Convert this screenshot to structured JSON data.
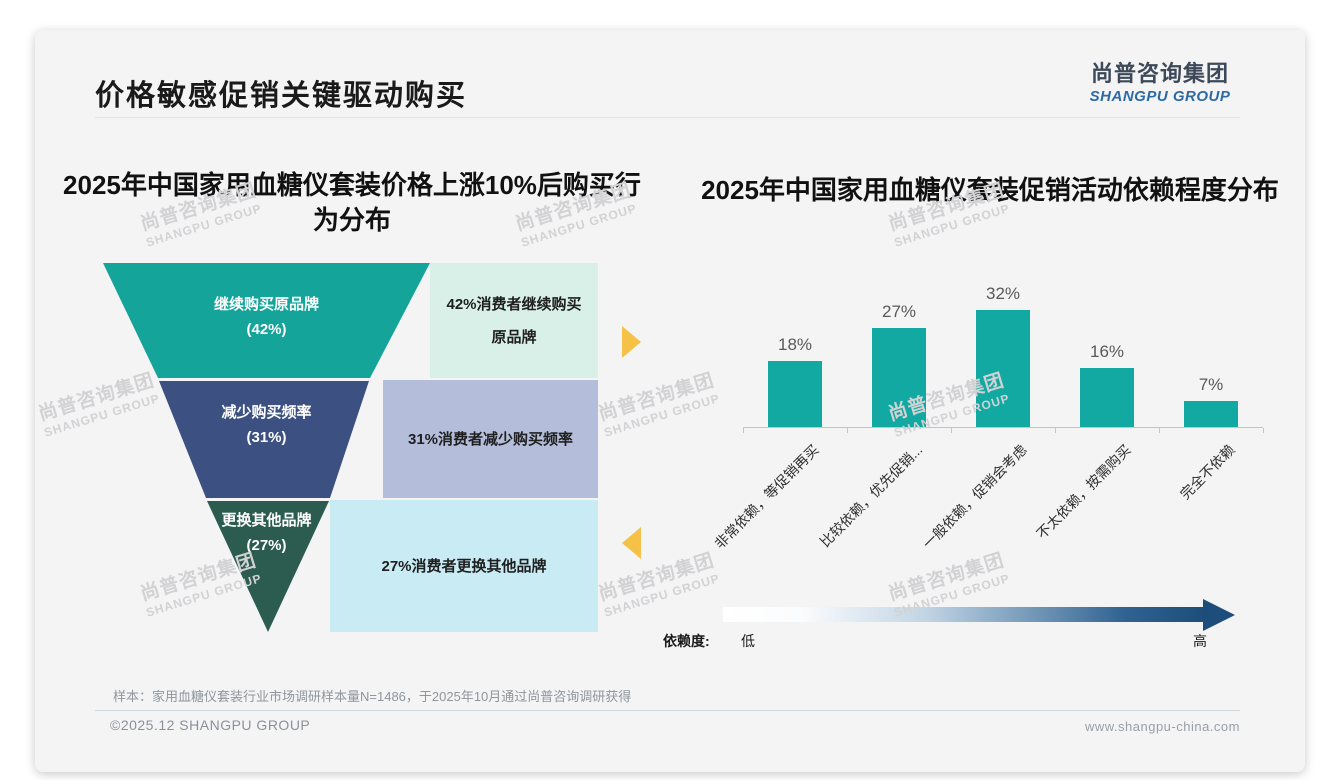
{
  "slide": {
    "page_title": "价格敏感促销关键驱动购买",
    "footnote": "样本：家用血糖仪套装行业市场调研样本量N=1486，于2025年10月通过尚普咨询调研获得",
    "footer_left": "©2025.12 SHANGPU GROUP",
    "footer_right": "www.shangpu-china.com"
  },
  "logo": {
    "cn": "尚普咨询集团",
    "en": "SHANGPU GROUP"
  },
  "watermark": {
    "cn": "尚普咨询集团",
    "en": "SHANGPU GROUP"
  },
  "chart_data": [
    {
      "type": "funnel",
      "title": "2025年中国家用血糖仪套装价格上涨10%后购买行为分布",
      "categories": [
        "继续购买原品牌",
        "减少购买频率",
        "更换其他品牌"
      ],
      "values": [
        42,
        31,
        27
      ],
      "unit": "%",
      "segments": [
        {
          "label": "继续购买原品牌",
          "pct_label": "(42%)",
          "value": 42,
          "color": "#14a49a",
          "note": "42%消费者继续购买原品牌",
          "note_bg": "#d9f0e9"
        },
        {
          "label": "减少购买频率",
          "pct_label": "(31%)",
          "value": 31,
          "color": "#3c5181",
          "note": "31%消费者减少购买频率",
          "note_bg": "#b4bedb"
        },
        {
          "label": "更换其他品牌",
          "pct_label": "(27%)",
          "value": 27,
          "color": "#2c5c50",
          "note": "27%消费者更换其他品牌",
          "note_bg": "#c8ebf4"
        }
      ]
    },
    {
      "type": "bar",
      "title": "2025年中国家用血糖仪套装促销活动依赖程度分布",
      "categories": [
        "非常依赖，等促销再买",
        "比较依赖，优先促销...",
        "一般依赖，促销会考虑",
        "不太依赖，按需购买",
        "完全不依赖"
      ],
      "values": [
        18,
        27,
        32,
        16,
        7
      ],
      "value_labels": [
        "18%",
        "27%",
        "32%",
        "16%",
        "7%"
      ],
      "unit": "%",
      "ylim": [
        0,
        35
      ],
      "grid": false,
      "bar_color": "#12a9a2",
      "legend": {
        "label": "依赖度:",
        "low": "低",
        "high": "高"
      },
      "gradient": [
        "#ffffff",
        "#1d4e7b"
      ]
    }
  ],
  "colors": {
    "accent_yellow": "#f5c146",
    "logo_blue": "#2c6aa6",
    "card_bg": "#f4f4f5"
  }
}
